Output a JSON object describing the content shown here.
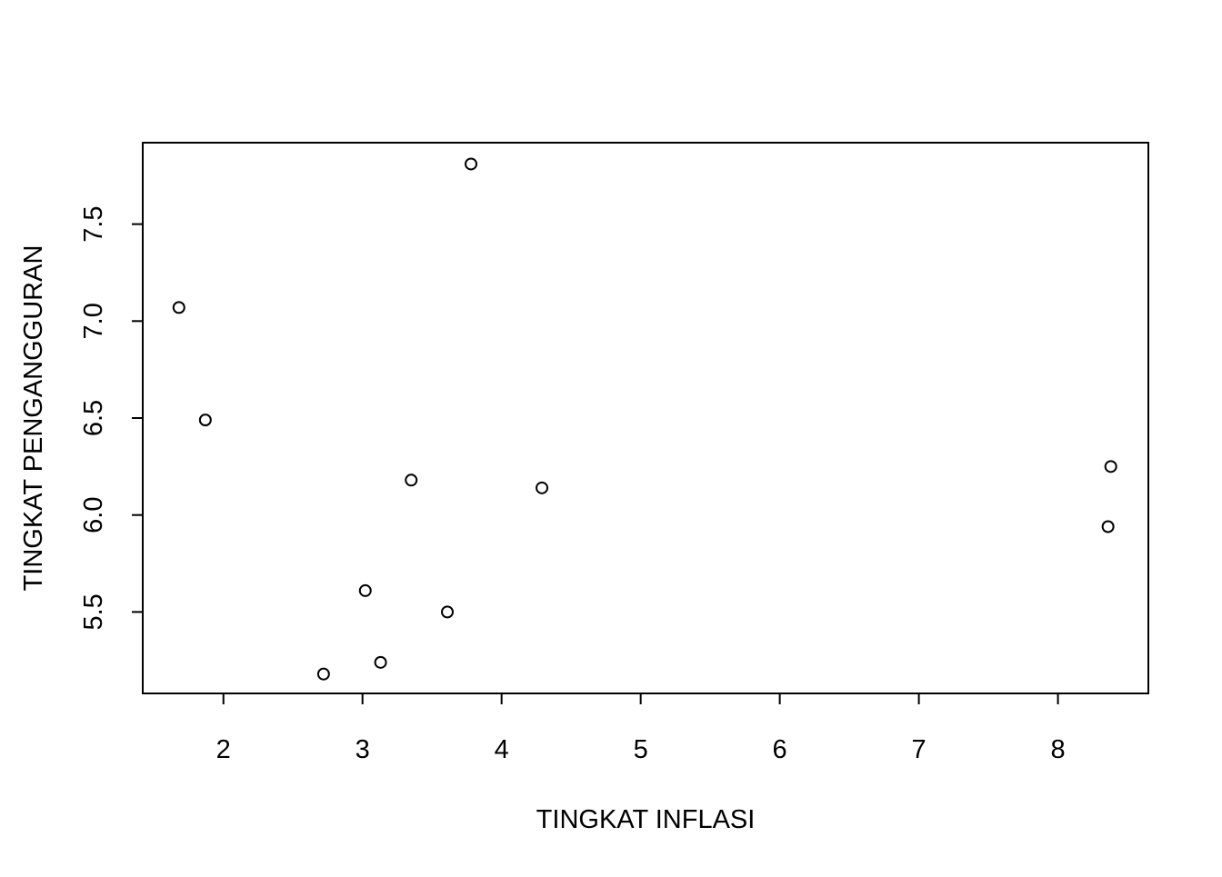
{
  "chart_data": {
    "type": "scatter",
    "title": "",
    "xlabel": "TINGKAT INFLASI",
    "ylabel": "TINGKAT PENGANGGURAN",
    "xlim": [
      1.42,
      8.65
    ],
    "ylim": [
      5.08,
      7.92
    ],
    "x_ticks": [
      2,
      3,
      4,
      5,
      6,
      7,
      8
    ],
    "x_tick_labels": [
      "2",
      "3",
      "4",
      "5",
      "6",
      "7",
      "8"
    ],
    "y_ticks": [
      5.5,
      6.0,
      6.5,
      7.0,
      7.5
    ],
    "y_tick_labels": [
      "5.5",
      "6.0",
      "6.5",
      "7.0",
      "7.5"
    ],
    "grid": false,
    "legend": "none",
    "point_style": "open-circle",
    "colors": {
      "points": "#000000",
      "axes": "#000000",
      "background": "#ffffff"
    },
    "points": [
      {
        "x": 1.68,
        "y": 7.07
      },
      {
        "x": 1.87,
        "y": 6.49
      },
      {
        "x": 2.72,
        "y": 5.18
      },
      {
        "x": 3.02,
        "y": 5.61
      },
      {
        "x": 3.13,
        "y": 5.24
      },
      {
        "x": 3.35,
        "y": 6.18
      },
      {
        "x": 3.61,
        "y": 5.5
      },
      {
        "x": 3.78,
        "y": 7.81
      },
      {
        "x": 4.29,
        "y": 6.14
      },
      {
        "x": 8.36,
        "y": 5.94
      },
      {
        "x": 8.38,
        "y": 6.25
      }
    ]
  }
}
